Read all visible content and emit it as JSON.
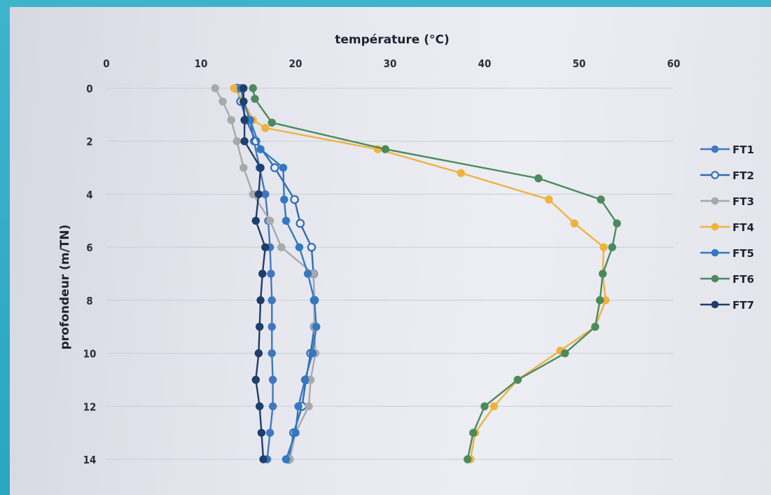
{
  "chart_data": {
    "type": "line",
    "xlabel": "température (°C)",
    "ylabel": "profondeur (m/TN)",
    "xlim": [
      0,
      60
    ],
    "ylim": [
      0,
      14
    ],
    "x_ticks": [
      "0",
      "10",
      "20",
      "30",
      "40",
      "50",
      "60"
    ],
    "y_ticks": [
      "0",
      "2",
      "4",
      "6",
      "8",
      "10",
      "12",
      "14"
    ],
    "x_axis_position": "top",
    "y_axis_inverted": true,
    "grid": "horizontal",
    "legend_position": "right",
    "series": [
      {
        "name": "FT1",
        "color": "#3f78c0",
        "marker": "circle",
        "points": [
          [
            14.2,
            0
          ],
          [
            14.5,
            0.5
          ],
          [
            15.2,
            1.2
          ],
          [
            15.6,
            2
          ],
          [
            16.2,
            3
          ],
          [
            16.8,
            4
          ],
          [
            17.1,
            5
          ],
          [
            17.3,
            6
          ],
          [
            17.4,
            7
          ],
          [
            17.5,
            8
          ],
          [
            17.5,
            9
          ],
          [
            17.5,
            10
          ],
          [
            17.6,
            11
          ],
          [
            17.6,
            12
          ],
          [
            17.3,
            13
          ],
          [
            17.0,
            14
          ]
        ]
      },
      {
        "name": "FT2",
        "color": "#2f6bb3",
        "marker": "circle-open",
        "points": [
          [
            13.8,
            0
          ],
          [
            14.2,
            0.5
          ],
          [
            14.8,
            1.2
          ],
          [
            15.8,
            2
          ],
          [
            17.8,
            3
          ],
          [
            19.9,
            4.2
          ],
          [
            20.5,
            5.1
          ],
          [
            21.7,
            6
          ],
          [
            21.9,
            7
          ],
          [
            22,
            8
          ],
          [
            22,
            9
          ],
          [
            21.6,
            10
          ],
          [
            21.1,
            11
          ],
          [
            20.7,
            12
          ],
          [
            19.8,
            13
          ],
          [
            19.3,
            14
          ]
        ]
      },
      {
        "name": "FT3",
        "color": "#a9a9ab",
        "marker": "circle",
        "points": [
          [
            11.5,
            0
          ],
          [
            12.3,
            0.5
          ],
          [
            13.2,
            1.2
          ],
          [
            13.8,
            2
          ],
          [
            14.5,
            3
          ],
          [
            15.5,
            4
          ],
          [
            17.3,
            5
          ],
          [
            18.5,
            6
          ],
          [
            21.9,
            7
          ],
          [
            22,
            8
          ],
          [
            22,
            9
          ],
          [
            22.1,
            10
          ],
          [
            21.6,
            11
          ],
          [
            21.4,
            12
          ],
          [
            20,
            13
          ],
          [
            19.4,
            14
          ]
        ]
      },
      {
        "name": "FT4",
        "color": "#f0b23e",
        "marker": "circle",
        "points": [
          [
            13.5,
            0
          ],
          [
            14.5,
            0.5
          ],
          [
            15.5,
            1.2
          ],
          [
            16.8,
            1.5
          ],
          [
            28.7,
            2.3
          ],
          [
            37.5,
            3.2
          ],
          [
            46.8,
            4.2
          ],
          [
            49.5,
            5.1
          ],
          [
            52.6,
            6
          ],
          [
            52.5,
            7
          ],
          [
            52.8,
            8
          ],
          [
            51.7,
            9
          ],
          [
            48,
            9.9
          ],
          [
            43.5,
            11
          ],
          [
            41,
            12
          ],
          [
            39,
            13
          ],
          [
            38.5,
            14
          ]
        ]
      },
      {
        "name": "FT5",
        "color": "#3378c2",
        "marker": "circle",
        "points": [
          [
            14.2,
            0
          ],
          [
            14.5,
            0.5
          ],
          [
            15.2,
            1.2
          ],
          [
            16.3,
            2.3
          ],
          [
            18.7,
            3
          ],
          [
            18.8,
            4.2
          ],
          [
            19,
            5
          ],
          [
            20.4,
            6
          ],
          [
            21.3,
            7
          ],
          [
            22,
            8
          ],
          [
            22.2,
            9
          ],
          [
            21.8,
            10
          ],
          [
            21,
            11
          ],
          [
            20.3,
            12
          ],
          [
            20,
            13
          ],
          [
            19,
            14
          ]
        ]
      },
      {
        "name": "FT6",
        "color": "#4a8a5c",
        "marker": "circle",
        "points": [
          [
            15.5,
            0
          ],
          [
            15.7,
            0.4
          ],
          [
            17.5,
            1.3
          ],
          [
            29.5,
            2.3
          ],
          [
            45.7,
            3.4
          ],
          [
            52.3,
            4.2
          ],
          [
            54,
            5.1
          ],
          [
            53.5,
            6
          ],
          [
            52.5,
            7
          ],
          [
            52.2,
            8
          ],
          [
            51.7,
            9
          ],
          [
            48.5,
            10
          ],
          [
            43.5,
            11
          ],
          [
            40,
            12
          ],
          [
            38.8,
            13
          ],
          [
            38.2,
            14
          ]
        ]
      },
      {
        "name": "FT7",
        "color": "#1f3e6c",
        "marker": "circle",
        "points": [
          [
            14.5,
            0
          ],
          [
            14.5,
            0.5
          ],
          [
            14.6,
            1.2
          ],
          [
            14.6,
            2
          ],
          [
            16.3,
            3
          ],
          [
            16.1,
            4
          ],
          [
            15.8,
            5
          ],
          [
            16.8,
            6
          ],
          [
            16.5,
            7
          ],
          [
            16.3,
            8
          ],
          [
            16.2,
            9
          ],
          [
            16.1,
            10
          ],
          [
            15.8,
            11
          ],
          [
            16.2,
            12
          ],
          [
            16.4,
            13
          ],
          [
            16.6,
            14
          ]
        ]
      }
    ]
  }
}
